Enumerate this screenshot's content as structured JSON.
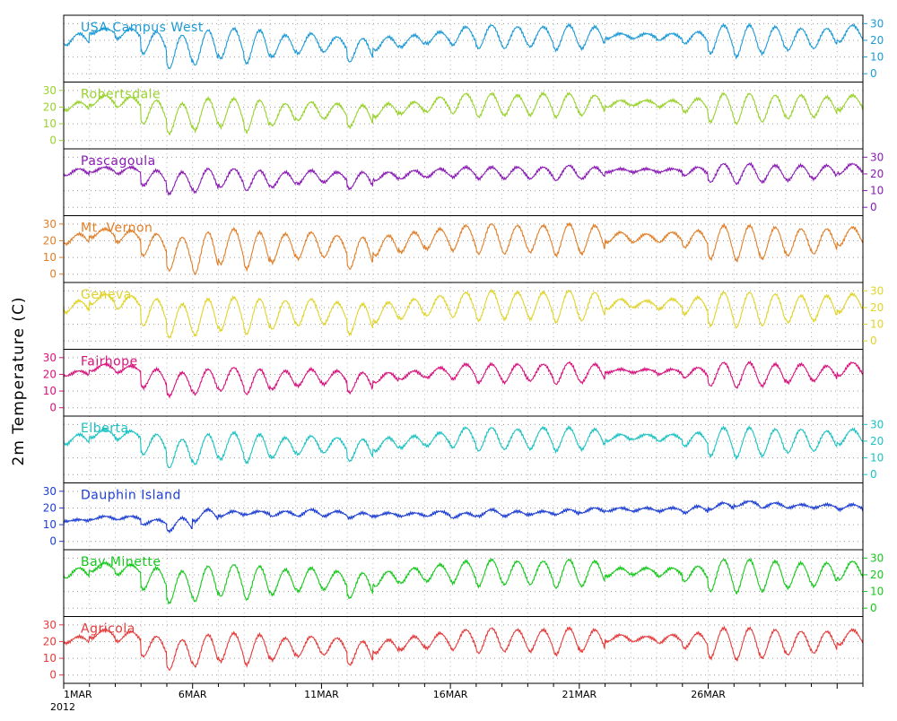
{
  "y_axis_title": "2m Temperature (C)",
  "chart_data": {
    "type": "line",
    "ylabel": "2m Temperature (C)",
    "xlabel": "",
    "date_labels": [
      "1MAR",
      "6MAR",
      "11MAR",
      "16MAR",
      "21MAR",
      "26MAR"
    ],
    "year_label": "2012",
    "x_range": [
      "2012-03-01",
      "2012-03-31"
    ],
    "ylim": [
      -5,
      35
    ],
    "yticks": [
      0,
      10,
      20,
      30
    ],
    "grid": true,
    "colors": {
      "USA Campus West": "#1c9ad6",
      "Robertsdale": "#99d22d",
      "Pascagoula": "#8a1bb5",
      "Mt. Vernon": "#e07f29",
      "Geneva": "#e0d429",
      "Fairhope": "#d9117d",
      "Elberta": "#1cc2c2",
      "Dauphin Island": "#1d3ed3",
      "Bay Minette": "#16c81c",
      "Agricola": "#e63a3a"
    },
    "series": [
      {
        "name": "USA Campus West",
        "axis_side": "right",
        "daily_min": [
          17,
          24,
          21,
          12,
          3,
          5,
          9,
          6,
          10,
          12,
          13,
          7,
          14,
          16,
          18,
          17,
          15,
          15,
          16,
          14,
          15,
          21,
          21,
          20,
          18,
          12,
          10,
          12,
          14,
          15,
          19
        ],
        "daily_max": [
          24,
          27,
          27,
          25,
          23,
          26,
          27,
          26,
          23,
          24,
          22,
          21,
          22,
          23,
          25,
          28,
          29,
          28,
          28,
          29,
          28,
          24,
          24,
          24,
          25,
          29,
          29,
          28,
          27,
          27,
          29
        ]
      },
      {
        "name": "Robertsdale",
        "axis_side": "left",
        "daily_min": [
          18,
          21,
          20,
          10,
          4,
          6,
          8,
          5,
          9,
          12,
          13,
          8,
          14,
          16,
          17,
          16,
          14,
          15,
          15,
          14,
          15,
          20,
          21,
          20,
          17,
          11,
          10,
          11,
          13,
          14,
          18
        ],
        "daily_max": [
          23,
          27,
          26,
          24,
          22,
          25,
          25,
          24,
          22,
          23,
          22,
          21,
          22,
          23,
          26,
          28,
          28,
          27,
          28,
          28,
          27,
          24,
          24,
          24,
          25,
          28,
          28,
          27,
          27,
          26,
          27
        ]
      },
      {
        "name": "Pascagoula",
        "axis_side": "right",
        "daily_min": [
          19,
          21,
          20,
          13,
          8,
          9,
          12,
          10,
          12,
          14,
          15,
          11,
          16,
          17,
          18,
          18,
          17,
          17,
          17,
          16,
          17,
          21,
          21,
          21,
          19,
          15,
          14,
          15,
          16,
          17,
          20
        ],
        "daily_max": [
          23,
          24,
          24,
          22,
          21,
          23,
          23,
          22,
          21,
          22,
          21,
          21,
          21,
          22,
          23,
          24,
          24,
          24,
          24,
          25,
          24,
          23,
          23,
          23,
          24,
          26,
          26,
          25,
          25,
          25,
          26
        ]
      },
      {
        "name": "Mt. Vernon",
        "axis_side": "left",
        "daily_min": [
          18,
          22,
          19,
          11,
          2,
          0,
          6,
          3,
          7,
          9,
          10,
          3,
          11,
          13,
          15,
          14,
          12,
          12,
          13,
          11,
          12,
          19,
          19,
          19,
          16,
          9,
          8,
          9,
          11,
          12,
          17
        ],
        "daily_max": [
          24,
          27,
          26,
          24,
          22,
          25,
          27,
          25,
          24,
          25,
          23,
          22,
          23,
          25,
          27,
          29,
          30,
          29,
          29,
          30,
          29,
          25,
          24,
          25,
          26,
          29,
          29,
          28,
          27,
          27,
          28
        ]
      },
      {
        "name": "Geneva",
        "axis_side": "right",
        "daily_min": [
          17,
          22,
          19,
          9,
          2,
          3,
          6,
          4,
          7,
          9,
          10,
          4,
          11,
          13,
          15,
          14,
          12,
          13,
          13,
          11,
          12,
          19,
          20,
          19,
          16,
          9,
          8,
          9,
          11,
          12,
          17
        ],
        "daily_max": [
          24,
          28,
          27,
          25,
          22,
          25,
          26,
          25,
          24,
          25,
          23,
          22,
          23,
          25,
          27,
          29,
          30,
          29,
          29,
          30,
          29,
          25,
          24,
          25,
          26,
          29,
          29,
          28,
          27,
          27,
          28
        ]
      },
      {
        "name": "Fairhope",
        "axis_side": "left",
        "daily_min": [
          19,
          22,
          21,
          12,
          7,
          8,
          10,
          8,
          11,
          13,
          14,
          9,
          15,
          17,
          18,
          17,
          15,
          15,
          16,
          14,
          15,
          21,
          21,
          20,
          18,
          13,
          12,
          13,
          15,
          16,
          19
        ],
        "daily_max": [
          22,
          26,
          25,
          23,
          21,
          23,
          24,
          23,
          22,
          23,
          22,
          21,
          21,
          22,
          24,
          26,
          26,
          26,
          26,
          27,
          26,
          23,
          23,
          23,
          24,
          27,
          27,
          26,
          26,
          25,
          27
        ]
      },
      {
        "name": "Elberta",
        "axis_side": "right",
        "daily_min": [
          18,
          22,
          21,
          12,
          4,
          6,
          9,
          7,
          10,
          12,
          13,
          8,
          14,
          16,
          17,
          16,
          14,
          15,
          15,
          14,
          15,
          20,
          21,
          20,
          17,
          11,
          10,
          11,
          13,
          14,
          18
        ],
        "daily_max": [
          24,
          27,
          26,
          24,
          21,
          24,
          25,
          24,
          22,
          23,
          22,
          21,
          22,
          23,
          25,
          28,
          28,
          27,
          28,
          28,
          27,
          24,
          24,
          24,
          25,
          28,
          28,
          27,
          27,
          26,
          27
        ]
      },
      {
        "name": "Dauphin Island",
        "axis_side": "left",
        "daily_min": [
          12,
          13,
          13,
          10,
          6,
          12,
          15,
          16,
          15,
          15,
          15,
          14,
          15,
          15,
          15,
          14,
          15,
          15,
          16,
          16,
          17,
          18,
          18,
          18,
          17,
          19,
          21,
          20,
          20,
          20,
          19
        ],
        "daily_max": [
          13,
          15,
          15,
          13,
          14,
          19,
          18,
          18,
          18,
          19,
          18,
          17,
          17,
          17,
          18,
          17,
          19,
          18,
          18,
          19,
          20,
          20,
          20,
          20,
          21,
          23,
          24,
          23,
          22,
          22,
          22
        ]
      },
      {
        "name": "Bay Minette",
        "axis_side": "right",
        "daily_min": [
          18,
          22,
          20,
          11,
          3,
          4,
          7,
          5,
          8,
          10,
          11,
          6,
          13,
          15,
          16,
          15,
          13,
          14,
          14,
          12,
          13,
          19,
          20,
          19,
          16,
          10,
          9,
          10,
          12,
          13,
          17
        ],
        "daily_max": [
          24,
          27,
          26,
          24,
          22,
          25,
          26,
          25,
          23,
          24,
          22,
          21,
          22,
          24,
          26,
          28,
          29,
          28,
          28,
          29,
          28,
          24,
          24,
          24,
          25,
          29,
          29,
          28,
          27,
          27,
          28
        ]
      },
      {
        "name": "Agricola",
        "axis_side": "left",
        "daily_min": [
          19,
          22,
          20,
          11,
          3,
          5,
          8,
          6,
          9,
          11,
          12,
          6,
          13,
          15,
          16,
          15,
          13,
          14,
          14,
          12,
          14,
          20,
          20,
          19,
          16,
          10,
          9,
          10,
          12,
          13,
          18
        ],
        "daily_max": [
          23,
          27,
          26,
          23,
          21,
          24,
          25,
          24,
          22,
          23,
          22,
          20,
          21,
          23,
          25,
          27,
          28,
          27,
          27,
          28,
          27,
          24,
          23,
          24,
          25,
          28,
          28,
          27,
          26,
          26,
          27
        ]
      }
    ]
  }
}
